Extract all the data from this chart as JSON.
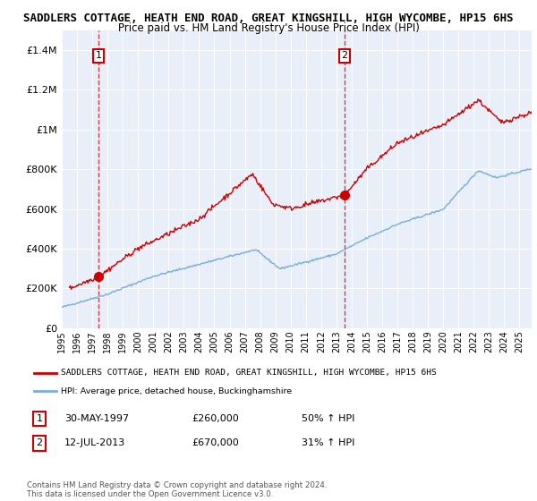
{
  "title": "SADDLERS COTTAGE, HEATH END ROAD, GREAT KINGSHILL, HIGH WYCOMBE, HP15 6HS",
  "subtitle": "Price paid vs. HM Land Registry's House Price Index (HPI)",
  "legend_line1": "SADDLERS COTTAGE, HEATH END ROAD, GREAT KINGSHILL, HIGH WYCOMBE, HP15 6HS",
  "legend_line2": "HPI: Average price, detached house, Buckinghamshire",
  "transaction1_date": "30-MAY-1997",
  "transaction1_price": "£260,000",
  "transaction1_hpi": "50% ↑ HPI",
  "transaction1_x": 1997.41,
  "transaction1_y": 260000,
  "transaction2_date": "12-JUL-2013",
  "transaction2_price": "£670,000",
  "transaction2_hpi": "31% ↑ HPI",
  "transaction2_x": 2013.53,
  "transaction2_y": 670000,
  "ylim": [
    0,
    1500000
  ],
  "xlim_start": 1995,
  "xlim_end": 2025.8,
  "yticks": [
    0,
    200000,
    400000,
    600000,
    800000,
    1000000,
    1200000,
    1400000
  ],
  "ytick_labels": [
    "£0",
    "£200K",
    "£400K",
    "£600K",
    "£800K",
    "£1M",
    "£1.2M",
    "£1.4M"
  ],
  "red_color": "#cc0000",
  "blue_color": "#7aaed6",
  "bg_color": "#e8eff9",
  "footer": "Contains HM Land Registry data © Crown copyright and database right 2024.\nThis data is licensed under the Open Government Licence v3.0.",
  "xticks": [
    1995,
    1996,
    1997,
    1998,
    1999,
    2000,
    2001,
    2002,
    2003,
    2004,
    2005,
    2006,
    2007,
    2008,
    2009,
    2010,
    2011,
    2012,
    2013,
    2014,
    2015,
    2016,
    2017,
    2018,
    2019,
    2020,
    2021,
    2022,
    2023,
    2024,
    2025
  ]
}
